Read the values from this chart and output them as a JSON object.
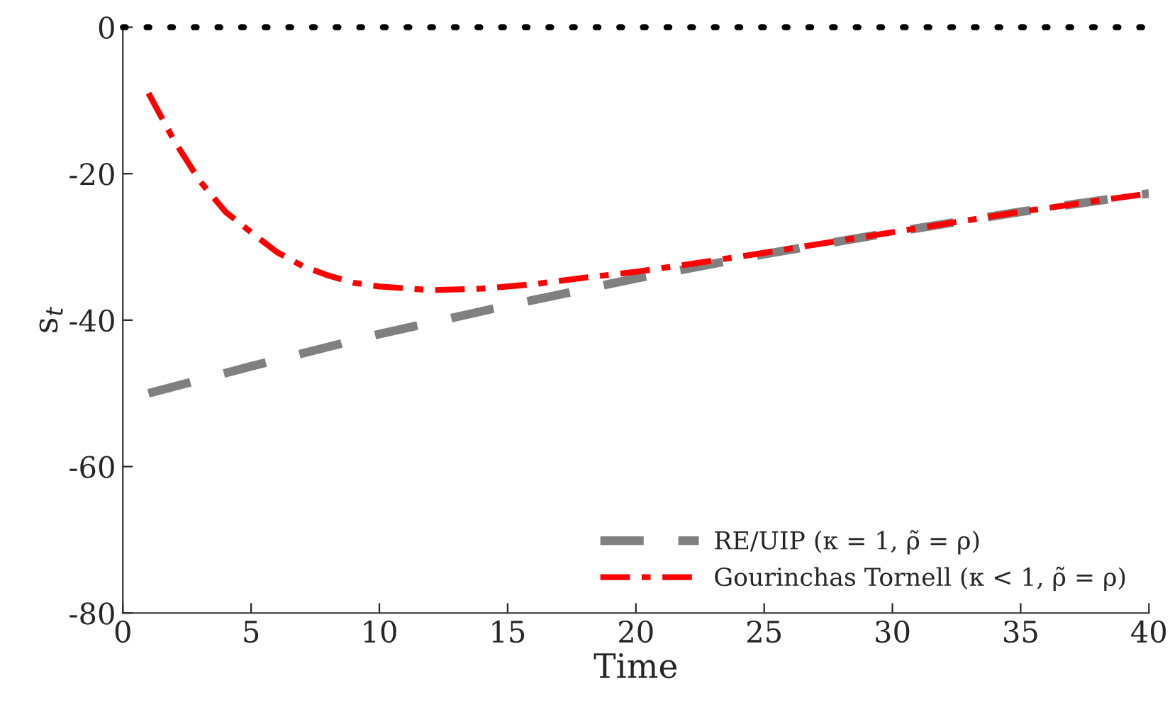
{
  "chart_data": {
    "type": "line",
    "xlabel": "Time",
    "ylabel": "s$_{t}$",
    "xlim": [
      0,
      40
    ],
    "ylim": [
      -80,
      0
    ],
    "xticks": [
      0,
      5,
      10,
      15,
      20,
      25,
      30,
      35,
      40
    ],
    "yticks": [
      {
        "value": -80,
        "label": "-80"
      },
      {
        "value": -60,
        "label": "-60"
      },
      {
        "value": -40,
        "label": "-40"
      },
      {
        "value": -20,
        "label": "-20"
      },
      0
    ],
    "grid": false,
    "legend": "bottom right",
    "marker": "none",
    "ref_lines": [
      {
        "axis": "y",
        "value": 0,
        "color": "#000000",
        "line_style": "dotted"
      }
    ],
    "series": [
      {
        "name": "RE/UIP (κ = 1, ρ̃ = ρ)",
        "color": "#808080",
        "line_style": "dashed",
        "x": [
          1,
          5,
          10,
          15,
          20,
          25,
          30,
          35,
          40
        ],
        "values": [
          -50,
          -46.3,
          -41.9,
          -38,
          -34.3,
          -31,
          -28,
          -25.2,
          -22.7
        ]
      },
      {
        "name": "Gourinchas Tornell (κ < 1, ρ̃ = ρ)",
        "color": "#ff0000",
        "line_style": "dashdot",
        "x": [
          1,
          2,
          3,
          4,
          5,
          6,
          7,
          8,
          9,
          10,
          12,
          14,
          16,
          18,
          20,
          22,
          25,
          30,
          35,
          40
        ],
        "values": [
          -9,
          -15.5,
          -21,
          -25.2,
          -28,
          -30.7,
          -32.6,
          -33.9,
          -34.9,
          -35.4,
          -35.9,
          -35.7,
          -35.1,
          -34.2,
          -33.4,
          -32.4,
          -30.8,
          -28,
          -25.2,
          -22.7
        ]
      }
    ]
  }
}
